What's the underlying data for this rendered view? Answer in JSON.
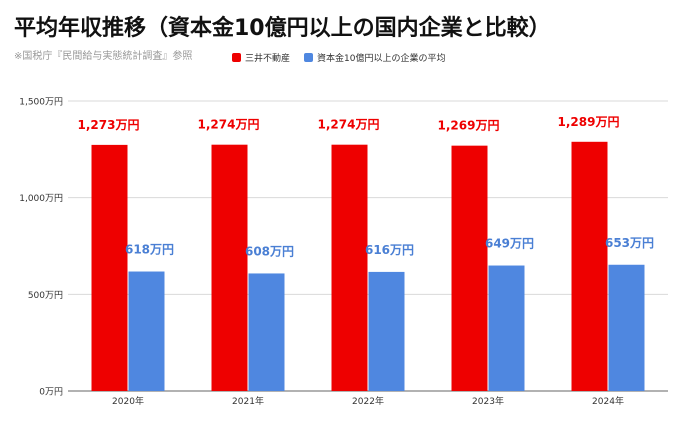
{
  "header": {
    "title": "平均年収推移（資本金10億円以上の国内企業と比較）",
    "source": "※国税庁『民間給与実態統計調査』参照"
  },
  "chart_data": {
    "type": "bar",
    "categories": [
      "2020年",
      "2021年",
      "2022年",
      "2023年",
      "2024年"
    ],
    "series": [
      {
        "name": "三井不動産",
        "values": [
          1273,
          1274,
          1274,
          1269,
          1289
        ],
        "color": "#ee0000",
        "label_color": "#ee0000"
      },
      {
        "name": "資本金10億円以上の企業の平均",
        "values": [
          618,
          608,
          616,
          649,
          653
        ],
        "color": "#4f87e0",
        "label_color": "#4a7fd4"
      }
    ],
    "data_labels": [
      [
        "1,273万円",
        "1,274万円",
        "1,274万円",
        "1,269万円",
        "1,289万円"
      ],
      [
        "618万円",
        "608万円",
        "616万円",
        "649万円",
        "653万円"
      ]
    ],
    "yticks": [
      0,
      500,
      1000,
      1500
    ],
    "ytick_labels": [
      "0万円",
      "500万円",
      "1,000万円",
      "1,500万円"
    ],
    "ylim": [
      0,
      1500
    ],
    "title": "",
    "xlabel": "",
    "ylabel": "",
    "grid": true,
    "legend_position": "top"
  }
}
